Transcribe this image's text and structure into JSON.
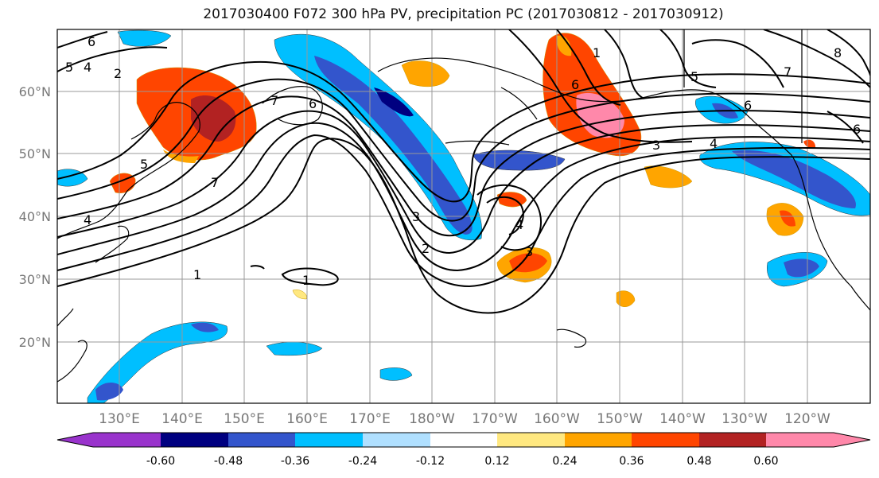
{
  "title": "2017030400 F072 300 hPa PV, precipitation PC (2017030812 - 2017030912)",
  "map": {
    "lat_labels": [
      "60°N",
      "50°N",
      "40°N",
      "30°N",
      "20°N"
    ],
    "lon_labels": [
      "130°E",
      "140°E",
      "150°E",
      "160°E",
      "170°E",
      "180°W",
      "170°W",
      "160°W",
      "150°W",
      "140°W",
      "130°W",
      "120°W"
    ],
    "contour_labels": [
      "1",
      "1",
      "2",
      "2",
      "3",
      "3",
      "4",
      "4",
      "4",
      "5",
      "5",
      "5",
      "6",
      "6",
      "6",
      "6",
      "6",
      "7",
      "7",
      "7",
      "8",
      "1",
      "3",
      "4"
    ]
  },
  "colorbar": {
    "colors": [
      "#9933cc",
      "#000080",
      "#3355cc",
      "#00bfff",
      "#b0e0ff",
      "#ffffff",
      "#ffe880",
      "#ffa500",
      "#ff4500",
      "#b22222",
      "#ff88aa"
    ],
    "tick_labels": [
      "-0.60",
      "-0.48",
      "-0.36",
      "-0.24",
      "-0.12",
      "0.12",
      "0.24",
      "0.36",
      "0.48",
      "0.60"
    ]
  }
}
